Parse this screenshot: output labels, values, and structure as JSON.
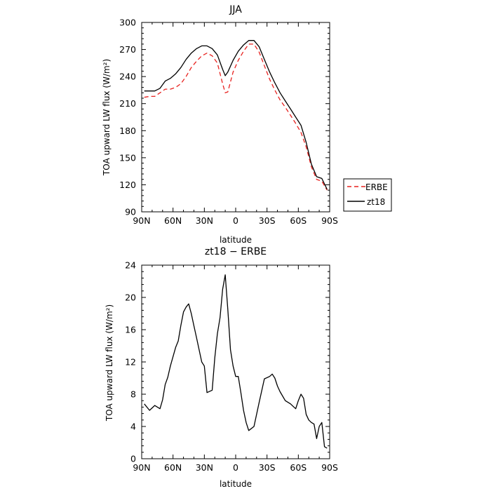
{
  "chart_data": [
    {
      "type": "line",
      "title": "JJA",
      "xlabel": "latitude",
      "ylabel": "TOA upward LW flux (W/m²)",
      "xlim": [
        90,
        -90
      ],
      "ylim": [
        90,
        300
      ],
      "xticks": [
        90,
        60,
        30,
        0,
        -30,
        -60,
        -90
      ],
      "xticklabels": [
        "90N",
        "60N",
        "30N",
        "0",
        "30S",
        "60S",
        "90S"
      ],
      "yticks": [
        90,
        120,
        150,
        180,
        210,
        240,
        270,
        300
      ],
      "yticklabels": [
        "90",
        "120",
        "150",
        "180",
        "210",
        "240",
        "270",
        "300"
      ],
      "legend_position": "right",
      "series": [
        {
          "name": "ERBE",
          "color": "#e8221f",
          "dash": true,
          "x": [
            87.5,
            82.5,
            77.5,
            72.5,
            67.5,
            62.5,
            57.5,
            52.5,
            47.5,
            42.5,
            37.5,
            32.5,
            27.5,
            22.5,
            17.5,
            12.5,
            10,
            7.5,
            2.5,
            -2.5,
            -7.5,
            -12.5,
            -17.5,
            -22.5,
            -27.5,
            -32.5,
            -37.5,
            -42.5,
            -47.5,
            -52.5,
            -57.5,
            -62.5,
            -67.5,
            -72.5,
            -77.5,
            -82.5,
            -87.5
          ],
          "y": [
            217,
            218,
            218,
            222,
            226,
            226,
            228,
            232,
            240,
            250,
            257,
            263,
            266,
            263,
            255,
            232,
            222,
            223,
            245,
            258,
            268,
            276,
            276,
            267,
            252,
            237,
            225,
            214,
            206,
            197,
            188,
            178,
            162,
            140,
            126,
            124,
            114
          ]
        },
        {
          "name": "zt18",
          "color": "#000000",
          "dash": false,
          "x": [
            87.5,
            82.5,
            77.5,
            72.5,
            67.5,
            62.5,
            57.5,
            52.5,
            47.5,
            42.5,
            37.5,
            32.5,
            27.5,
            22.5,
            17.5,
            12.5,
            10,
            7.5,
            2.5,
            -2.5,
            -7.5,
            -12.5,
            -17.5,
            -22.5,
            -27.5,
            -32.5,
            -37.5,
            -42.5,
            -47.5,
            -52.5,
            -57.5,
            -62.5,
            -67.5,
            -72.5,
            -77.5,
            -82.5,
            -87.5
          ],
          "y": [
            224,
            224,
            224,
            227,
            235,
            238,
            243,
            250,
            259,
            266,
            271,
            274,
            274,
            271,
            264,
            248,
            241,
            245,
            258,
            268,
            275,
            280,
            280,
            273,
            259,
            245,
            233,
            222,
            213,
            204,
            195,
            186,
            167,
            143,
            129,
            127,
            115
          ]
        }
      ]
    },
    {
      "type": "line",
      "title": "zt18 − ERBE",
      "xlabel": "latitude",
      "ylabel": "TOA upward LW flux (W/m²)",
      "xlim": [
        90,
        -90
      ],
      "ylim": [
        0,
        24
      ],
      "xticks": [
        90,
        60,
        30,
        0,
        -30,
        -60,
        -90
      ],
      "xticklabels": [
        "90N",
        "60N",
        "30N",
        "0",
        "30S",
        "60S",
        "90S"
      ],
      "yticks": [
        0,
        4,
        8,
        12,
        16,
        20,
        24
      ],
      "yticklabels": [
        "0",
        "4",
        "8",
        "12",
        "16",
        "20",
        "24"
      ],
      "series": [
        {
          "color": "#000000",
          "dash": false,
          "x": [
            87.5,
            82.5,
            77.5,
            72.5,
            70,
            67.5,
            65,
            62.5,
            57.5,
            55,
            52.5,
            50,
            47.5,
            45,
            42.5,
            40,
            37.5,
            35,
            32.5,
            30,
            27.5,
            22.5,
            20,
            17.5,
            15,
            12.5,
            10,
            7.5,
            5,
            2.5,
            0,
            -2.5,
            -5,
            -7.5,
            -10,
            -12.5,
            -17.5,
            -22.5,
            -27.5,
            -32.5,
            -35,
            -37.5,
            -40,
            -42.5,
            -47.5,
            -52.5,
            -55,
            -57.5,
            -60,
            -62.5,
            -65,
            -67.5,
            -70,
            -72.5,
            -75,
            -77.5,
            -80,
            -82.5,
            -85,
            -87.5
          ],
          "y": [
            6.8,
            6.0,
            6.6,
            6.2,
            7.3,
            9.2,
            10.1,
            11.5,
            13.8,
            14.6,
            16.5,
            18.2,
            18.8,
            19.2,
            18.0,
            16.5,
            15.0,
            13.5,
            12.0,
            11.5,
            8.2,
            8.5,
            12.5,
            15.5,
            17.5,
            21.0,
            22.8,
            18.5,
            13.5,
            11.5,
            10.2,
            10.2,
            8.2,
            6.0,
            4.5,
            3.5,
            4.0,
            7.0,
            9.9,
            10.2,
            10.5,
            10.0,
            9.0,
            8.3,
            7.2,
            6.8,
            6.5,
            6.2,
            7.2,
            8.0,
            7.5,
            5.5,
            4.8,
            4.5,
            4.3,
            2.5,
            4.0,
            4.5,
            1.5,
            1.3
          ]
        }
      ]
    }
  ]
}
